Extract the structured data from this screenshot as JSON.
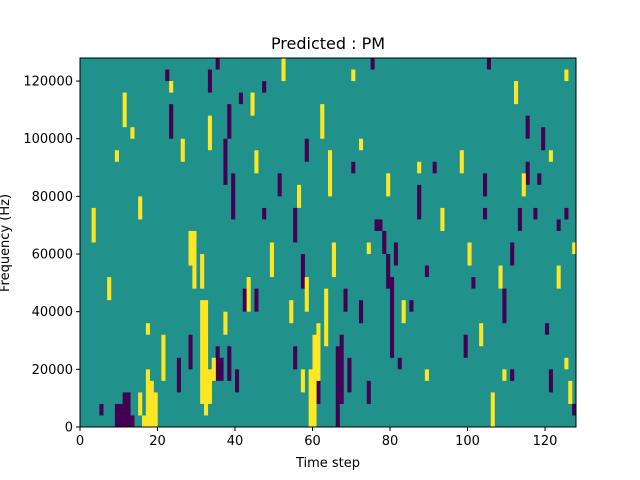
{
  "chart_data": {
    "type": "heatmap",
    "title": "Predicted : PM",
    "xlabel": "Time step",
    "ylabel": "Frequency (Hz)",
    "xlim": [
      0,
      128
    ],
    "ylim": [
      0,
      128000
    ],
    "xticks": [
      0,
      20,
      40,
      60,
      80,
      100,
      120
    ],
    "yticks": [
      0,
      20000,
      40000,
      60000,
      80000,
      100000,
      120000
    ],
    "xtick_labels": [
      "0",
      "20",
      "40",
      "60",
      "80",
      "100",
      "120"
    ],
    "ytick_labels": [
      "0",
      "20000",
      "40000",
      "60000",
      "80000",
      "100000",
      "120000"
    ],
    "rows": 64,
    "row_height_hz": 2000,
    "background_value": 0,
    "colormap": {
      "-1": "#440154",
      "0": "#21918c",
      "1": "#fde725"
    },
    "cells_high": [
      [
        17,
        0,
        2
      ],
      [
        18,
        0,
        10
      ],
      [
        19,
        0,
        8
      ],
      [
        20,
        0,
        6
      ],
      [
        16,
        2,
        4
      ],
      [
        32,
        4,
        18
      ],
      [
        33,
        2,
        20
      ],
      [
        34,
        4,
        6
      ],
      [
        35,
        8,
        4
      ],
      [
        32,
        24,
        6
      ],
      [
        29,
        28,
        6
      ],
      [
        30,
        24,
        10
      ],
      [
        22,
        8,
        8
      ],
      [
        60,
        0,
        10
      ],
      [
        61,
        0,
        16
      ],
      [
        62,
        8,
        10
      ],
      [
        64,
        14,
        10
      ],
      [
        65,
        40,
        8
      ],
      [
        63,
        50,
        6
      ],
      [
        59,
        20,
        6
      ],
      [
        58,
        6,
        4
      ],
      [
        66,
        26,
        6
      ],
      [
        57,
        38,
        4
      ],
      [
        55,
        18,
        4
      ],
      [
        44,
        20,
        6
      ],
      [
        46,
        44,
        4
      ],
      [
        50,
        26,
        6
      ],
      [
        45,
        54,
        4
      ],
      [
        53,
        60,
        6
      ],
      [
        49,
        70,
        2
      ],
      [
        42,
        66,
        2
      ],
      [
        38,
        74,
        2
      ],
      [
        36,
        82,
        2
      ],
      [
        31,
        86,
        4
      ],
      [
        24,
        58,
        2
      ],
      [
        27,
        46,
        4
      ],
      [
        12,
        52,
        6
      ],
      [
        8,
        22,
        4
      ],
      [
        10,
        46,
        2
      ],
      [
        4,
        32,
        6
      ],
      [
        5,
        68,
        4
      ],
      [
        2,
        74,
        4
      ],
      [
        3,
        96,
        2
      ],
      [
        6,
        110,
        2
      ],
      [
        8,
        120,
        2
      ],
      [
        25,
        122,
        2
      ],
      [
        30,
        118,
        4
      ],
      [
        40,
        110,
        2
      ],
      [
        44,
        102,
        4
      ],
      [
        50,
        96,
        2
      ],
      [
        52,
        86,
        2
      ],
      [
        57,
        92,
        4
      ],
      [
        61,
        104,
        4
      ],
      [
        62,
        112,
        2
      ],
      [
        65,
        108,
        4
      ],
      [
        67,
        94,
        2
      ],
      [
        70,
        82,
        2
      ],
      [
        72,
        104,
        4
      ],
      [
        74,
        112,
        2
      ],
      [
        77,
        114,
        2
      ],
      [
        81,
        116,
        6
      ],
      [
        86,
        124,
        2
      ],
      [
        88,
        100,
        4
      ],
      [
        92,
        64,
        2
      ],
      [
        96,
        90,
        2
      ],
      [
        97,
        66,
        4
      ],
      [
        99,
        44,
        4
      ],
      [
        103,
        80,
        2
      ],
      [
        104,
        68,
        4
      ],
      [
        101,
        28,
        4
      ],
      [
        104,
        14,
        4
      ],
      [
        107,
        0,
        6
      ],
      [
        109,
        24,
        4
      ],
      [
        110,
        8,
        2
      ],
      [
        112,
        64,
        4
      ],
      [
        113,
        56,
        4
      ],
      [
        115,
        40,
        4
      ],
      [
        117,
        112,
        2
      ],
      [
        119,
        84,
        2
      ],
      [
        122,
        46,
        2
      ],
      [
        124,
        24,
        4
      ],
      [
        126,
        60,
        2
      ],
      [
        127,
        4,
        4
      ],
      [
        128,
        30,
        2
      ],
      [
        94,
        34,
        4
      ],
      [
        90,
        8,
        2
      ],
      [
        84,
        18,
        4
      ],
      [
        80,
        40,
        4
      ],
      [
        75,
        30,
        2
      ],
      [
        88,
        44,
        2
      ],
      [
        71,
        60,
        2
      ],
      [
        73,
        48,
        2
      ],
      [
        84,
        76,
        2
      ],
      [
        95,
        118,
        2
      ],
      [
        120,
        92,
        2
      ],
      [
        126,
        10,
        2
      ],
      [
        16,
        36,
        4
      ],
      [
        14,
        50,
        2
      ],
      [
        18,
        16,
        2
      ],
      [
        34,
        48,
        6
      ],
      [
        28,
        70,
        2
      ],
      [
        1,
        80,
        2
      ],
      [
        2,
        90,
        2
      ],
      [
        38,
        16,
        4
      ]
    ],
    "cells_low": [
      [
        10,
        0,
        4
      ],
      [
        11,
        0,
        4
      ],
      [
        12,
        0,
        6
      ],
      [
        13,
        0,
        6
      ],
      [
        14,
        0,
        2
      ],
      [
        26,
        6,
        6
      ],
      [
        29,
        10,
        6
      ],
      [
        36,
        8,
        6
      ],
      [
        37,
        8,
        4
      ],
      [
        39,
        8,
        6
      ],
      [
        41,
        6,
        4
      ],
      [
        43,
        20,
        4
      ],
      [
        40,
        36,
        8
      ],
      [
        38,
        42,
        8
      ],
      [
        34,
        58,
        4
      ],
      [
        36,
        62,
        4
      ],
      [
        39,
        50,
        6
      ],
      [
        42,
        56,
        2
      ],
      [
        46,
        20,
        4
      ],
      [
        48,
        36,
        2
      ],
      [
        52,
        40,
        4
      ],
      [
        56,
        10,
        4
      ],
      [
        58,
        24,
        6
      ],
      [
        56,
        32,
        6
      ],
      [
        59,
        46,
        4
      ],
      [
        62,
        4,
        6
      ],
      [
        67,
        0,
        14
      ],
      [
        68,
        4,
        12
      ],
      [
        69,
        20,
        4
      ],
      [
        70,
        6,
        6
      ],
      [
        71,
        44,
        2
      ],
      [
        73,
        18,
        4
      ],
      [
        75,
        4,
        4
      ],
      [
        77,
        34,
        2
      ],
      [
        78,
        34,
        2
      ],
      [
        79,
        30,
        4
      ],
      [
        80,
        24,
        6
      ],
      [
        81,
        12,
        14
      ],
      [
        82,
        28,
        4
      ],
      [
        83,
        10,
        2
      ],
      [
        86,
        20,
        2
      ],
      [
        88,
        36,
        6
      ],
      [
        90,
        26,
        2
      ],
      [
        92,
        44,
        2
      ],
      [
        95,
        80,
        6
      ],
      [
        98,
        64,
        4
      ],
      [
        100,
        12,
        4
      ],
      [
        105,
        40,
        4
      ],
      [
        108,
        74,
        2
      ],
      [
        110,
        18,
        6
      ],
      [
        112,
        8,
        2
      ],
      [
        114,
        34,
        4
      ],
      [
        116,
        50,
        4
      ],
      [
        118,
        36,
        2
      ],
      [
        120,
        48,
        4
      ],
      [
        122,
        6,
        4
      ],
      [
        124,
        34,
        2
      ],
      [
        126,
        36,
        2
      ],
      [
        128,
        2,
        2
      ],
      [
        2,
        122,
        2
      ],
      [
        14,
        124,
        2
      ],
      [
        20,
        82,
        2
      ],
      [
        27,
        106,
        2
      ],
      [
        33,
        96,
        2
      ],
      [
        40,
        124,
        2
      ],
      [
        44,
        92,
        2
      ],
      [
        52,
        126,
        2
      ],
      [
        56,
        110,
        2
      ],
      [
        59,
        114,
        2
      ],
      [
        64,
        102,
        4
      ],
      [
        68,
        78,
        2
      ],
      [
        70,
        120,
        4
      ],
      [
        76,
        62,
        2
      ],
      [
        80,
        122,
        2
      ],
      [
        82,
        110,
        2
      ],
      [
        86,
        88,
        2
      ],
      [
        90,
        98,
        2
      ],
      [
        94,
        78,
        2
      ],
      [
        98,
        118,
        2
      ],
      [
        105,
        36,
        2
      ],
      [
        108,
        120,
        2
      ],
      [
        110,
        84,
        2
      ],
      [
        112,
        28,
        4
      ],
      [
        116,
        42,
        4
      ],
      [
        119,
        42,
        2
      ],
      [
        121,
        16,
        2
      ],
      [
        1,
        104,
        2
      ],
      [
        24,
        50,
        6
      ],
      [
        9,
        84,
        2
      ],
      [
        16,
        66,
        2
      ],
      [
        23,
        60,
        2
      ],
      [
        31,
        84,
        2
      ],
      [
        48,
        82,
        4
      ],
      [
        54,
        100,
        4
      ],
      [
        62,
        86,
        2
      ],
      [
        6,
        2,
        2
      ],
      [
        48,
        58,
        2
      ],
      [
        102,
        24,
        2
      ],
      [
        96,
        102,
        2
      ],
      [
        106,
        62,
        2
      ]
    ]
  }
}
